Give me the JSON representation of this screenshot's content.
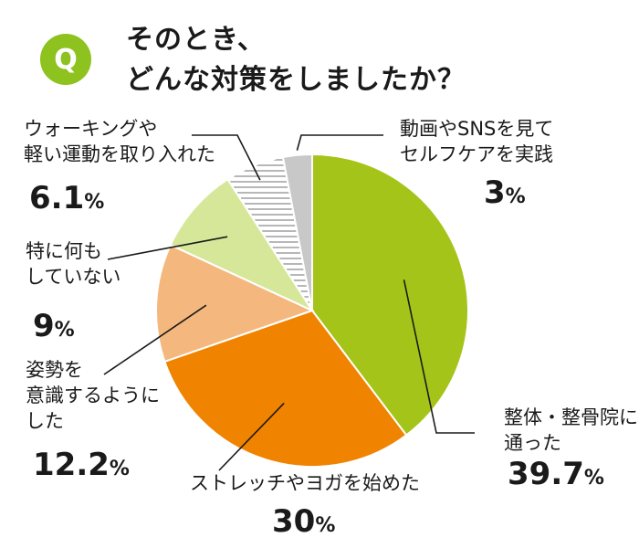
{
  "header": {
    "badge": "Q",
    "title_lines": [
      "そのとき、",
      "どんな対策をしましたか？"
    ]
  },
  "chart_data": {
    "type": "pie",
    "title": "そのとき、どんな対策をしましたか？",
    "unit": "%",
    "start": "12 o'clock",
    "direction": "clockwise",
    "slices": [
      {
        "label_lines": [
          "整体・整骨院に",
          "通った"
        ],
        "value": 39.7,
        "value_text": "39.7",
        "color": "#a5c41a",
        "pattern": "solid"
      },
      {
        "label_lines": [
          "ストレッチやヨガを始めた"
        ],
        "value": 30,
        "value_text": "30",
        "color": "#f08300",
        "pattern": "solid"
      },
      {
        "label_lines": [
          "姿勢を",
          "意識するように",
          "した"
        ],
        "value": 12.2,
        "value_text": "12.2",
        "color": "#f4b87e",
        "pattern": "solid"
      },
      {
        "label_lines": [
          "特に何も",
          "していない"
        ],
        "value": 9,
        "value_text": "9",
        "color": "#d6e79a",
        "pattern": "solid"
      },
      {
        "label_lines": [
          "ウォーキングや",
          "軽い運動を取り入れた"
        ],
        "value": 6.1,
        "value_text": "6.1",
        "color": "#ffffff",
        "pattern": "horizontal-stripes"
      },
      {
        "label_lines": [
          "動画やSNSを見て",
          "セルフケアを実践"
        ],
        "value": 3,
        "value_text": "3",
        "color": "#c8c8c8",
        "pattern": "solid"
      }
    ]
  }
}
